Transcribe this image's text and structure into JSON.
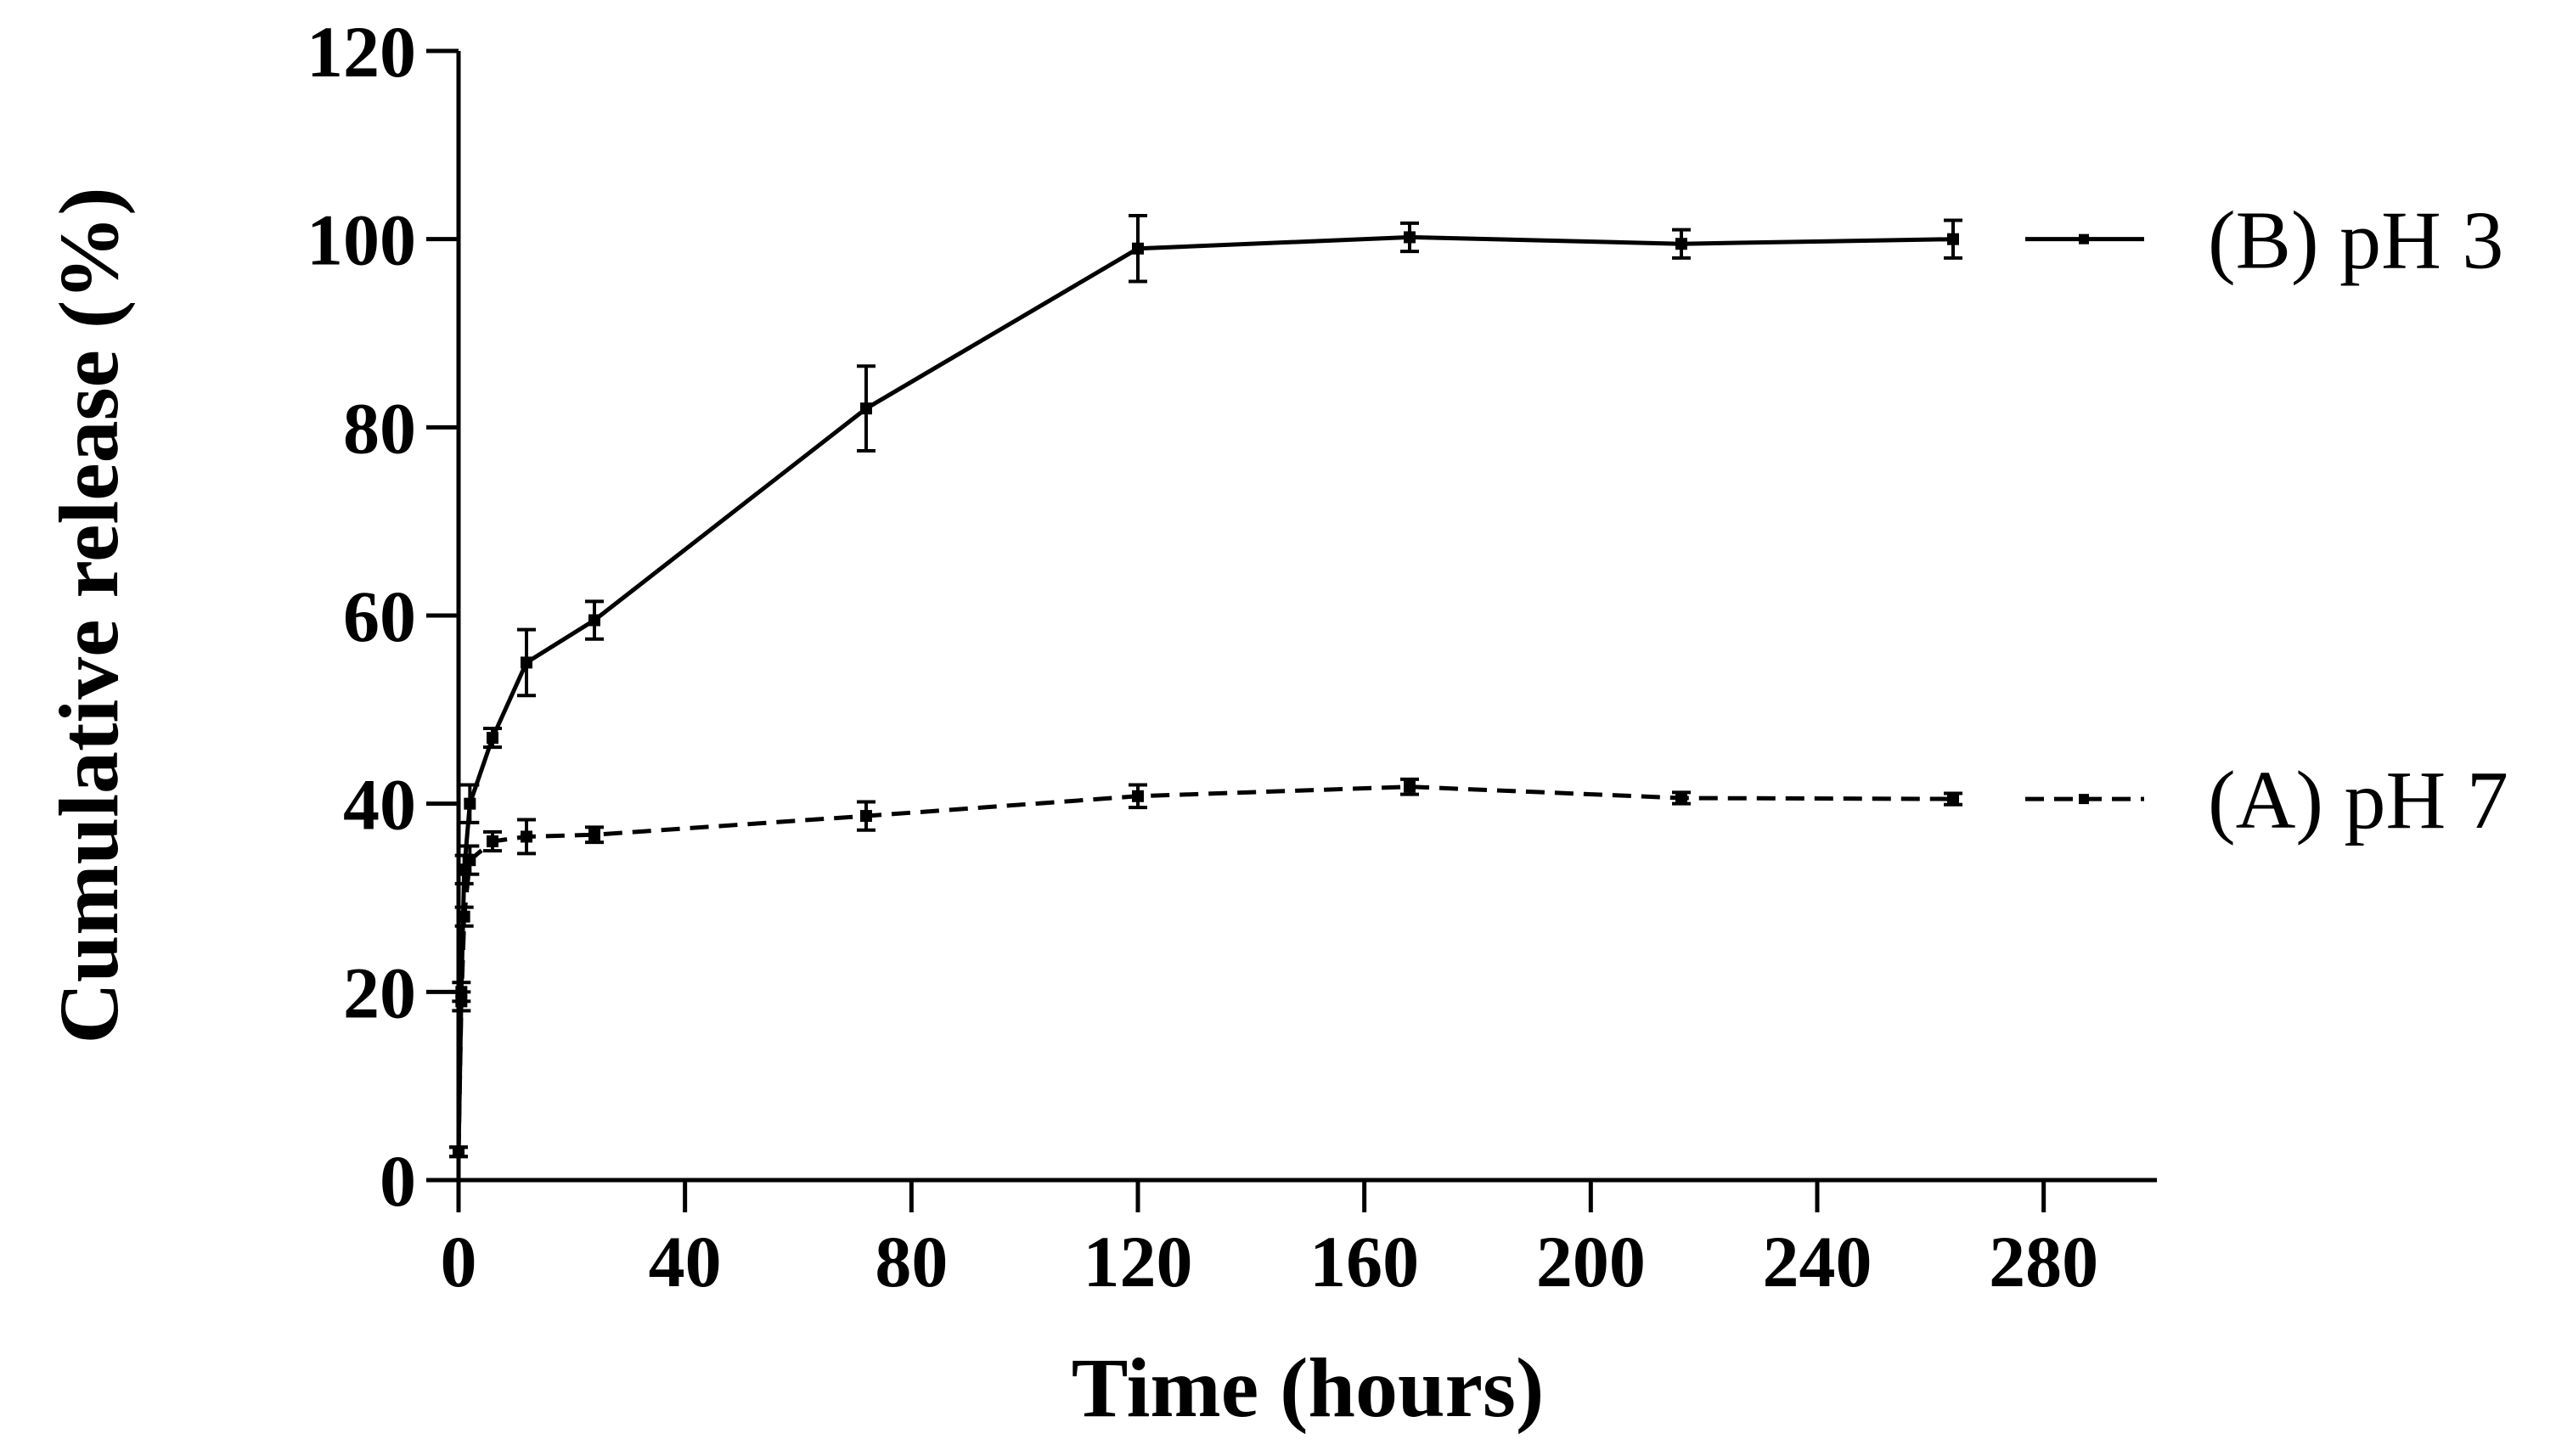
{
  "chart_data": {
    "type": "line",
    "title": "",
    "xlabel": "Time (hours)",
    "ylabel": "Cumulative release (%)",
    "xlim": [
      0,
      300
    ],
    "ylim": [
      0,
      120
    ],
    "xticks": [
      0,
      40,
      80,
      120,
      160,
      200,
      240,
      280
    ],
    "yticks": [
      0,
      20,
      40,
      60,
      80,
      100,
      120
    ],
    "grid": false,
    "legend_position": "right",
    "series": [
      {
        "name": "(B) pH 3",
        "line_style": "solid",
        "color": "#000000",
        "x": [
          0,
          0.5,
          1,
          2,
          6,
          12,
          24,
          72,
          120,
          168,
          216,
          264
        ],
        "y": [
          3,
          20,
          33,
          40,
          47,
          55,
          59.5,
          82,
          99,
          100.2,
          99.5,
          100
        ],
        "error": [
          0.5,
          1,
          1.5,
          2,
          1,
          3.5,
          2,
          4.5,
          3.5,
          1.5,
          1.5,
          2
        ]
      },
      {
        "name": "(A) pH 7",
        "line_style": "dashed",
        "color": "#000000",
        "x": [
          0,
          0.5,
          1,
          2,
          6,
          12,
          24,
          72,
          120,
          168,
          216,
          264
        ],
        "y": [
          3,
          19,
          28,
          34,
          36,
          36.5,
          36.7,
          38.7,
          40.8,
          41.8,
          40.6,
          40.5
        ],
        "error": [
          0.5,
          1,
          1,
          1.5,
          1,
          1.8,
          0.8,
          1.5,
          1.2,
          0.8,
          0.6,
          0.6
        ]
      }
    ]
  }
}
